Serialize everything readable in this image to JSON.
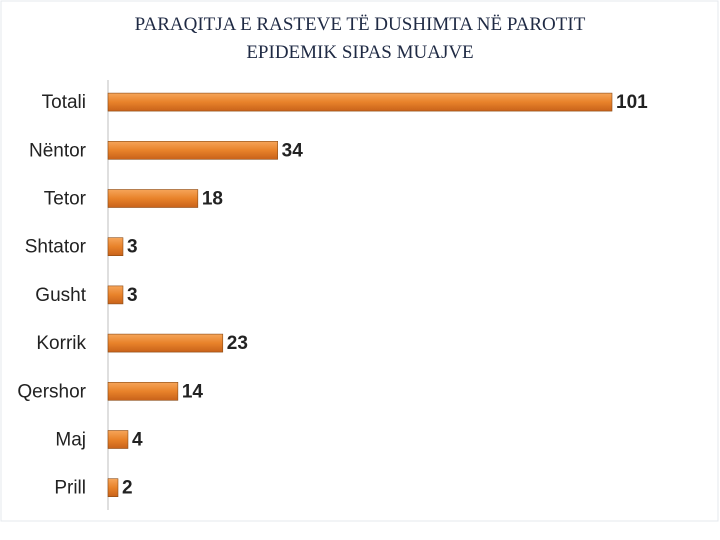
{
  "chart_data": {
    "type": "bar",
    "orientation": "horizontal",
    "title": [
      "PARAQITJA E RASTEVE  TË DUSHIMTA NË  PAROTIT",
      "EPIDEMIK SIPAS MUAJVE"
    ],
    "categories": [
      "Totali",
      "Nëntor",
      "Tetor",
      "Shtator",
      "Gusht",
      "Korrik",
      "Qershor",
      "Maj",
      "Prill"
    ],
    "values": [
      101,
      34,
      18,
      3,
      3,
      23,
      14,
      4,
      2
    ],
    "color": "#e8822a"
  }
}
